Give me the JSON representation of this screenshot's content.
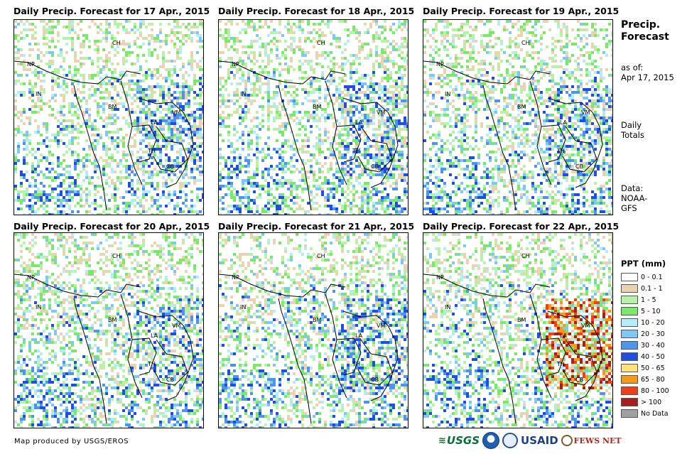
{
  "panels": [
    {
      "title": "Daily Precip. Forecast for 17 Apr., 2015",
      "intensity": 0.45
    },
    {
      "title": "Daily Precip. Forecast for 18 Apr., 2015",
      "intensity": 0.55
    },
    {
      "title": "Daily Precip. Forecast for 19 Apr., 2015",
      "intensity": 0.4
    },
    {
      "title": "Daily Precip. Forecast for 20 Apr., 2015",
      "intensity": 0.35
    },
    {
      "title": "Daily Precip. Forecast for 21 Apr., 2015",
      "intensity": 0.6
    },
    {
      "title": "Daily Precip. Forecast for 22 Apr., 2015",
      "intensity": 0.85
    }
  ],
  "map_labels": [
    "CH",
    "NP",
    "IN",
    "BM",
    "VM",
    "LA",
    "TH",
    "CB"
  ],
  "sidebar": {
    "title_line1": "Precip.",
    "title_line2": "Forecast",
    "asof_line1": "as of:",
    "asof_line2": "Apr 17, 2015",
    "daily_line1": "Daily",
    "daily_line2": "Totals",
    "data_line1": "Data:",
    "data_line2": "NOAA-",
    "data_line3": "GFS"
  },
  "legend": {
    "title": "PPT (mm)",
    "items": [
      {
        "label": "0 - 0.1",
        "color": "#ffffff"
      },
      {
        "label": "0.1 - 1",
        "color": "#e9d3b3"
      },
      {
        "label": "1 - 5",
        "color": "#b7f2a8"
      },
      {
        "label": "5 - 10",
        "color": "#7ae86a"
      },
      {
        "label": "10 - 20",
        "color": "#b4ecf7"
      },
      {
        "label": "20 - 30",
        "color": "#7fc8f5"
      },
      {
        "label": "30 - 40",
        "color": "#4f94ec"
      },
      {
        "label": "40 - 50",
        "color": "#1f4ee0"
      },
      {
        "label": "50 - 65",
        "color": "#ffe07a"
      },
      {
        "label": "65 - 80",
        "color": "#f29a1a"
      },
      {
        "label": "80 - 100",
        "color": "#f0401a"
      },
      {
        "label": "> 100",
        "color": "#a81f1f"
      },
      {
        "label": "No Data",
        "color": "#a0a0a0"
      }
    ]
  },
  "credit": "Map produced by USGS/EROS",
  "logos": {
    "usgs": "USGS",
    "usaid": "USAID",
    "fewsnet": "FEWS NET"
  }
}
